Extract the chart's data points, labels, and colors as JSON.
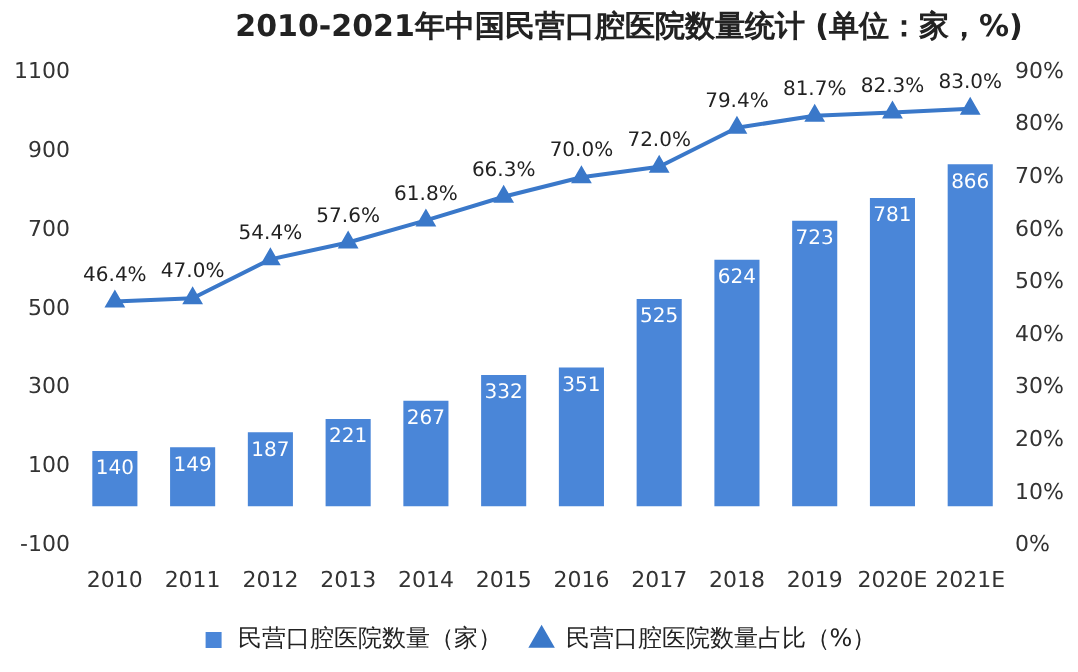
{
  "chart_data": {
    "type": "bar",
    "title": "2010-2021年中国民营口腔医院数量统计 (单位：家，%)",
    "categories": [
      "2010",
      "2011",
      "2012",
      "2013",
      "2014",
      "2015",
      "2016",
      "2017",
      "2018",
      "2019",
      "2020E",
      "2021E"
    ],
    "series": [
      {
        "name": "民营口腔医院数量（家）",
        "color": "#4a86d8",
        "values": [
          140,
          149,
          187,
          221,
          267,
          332,
          351,
          525,
          624,
          723,
          781,
          866
        ],
        "value_labels": [
          "140",
          "149",
          "187",
          "221",
          "267",
          "332",
          "351",
          "525",
          "624",
          "723",
          "781",
          "866"
        ]
      },
      {
        "name": "民营口腔医院数量占比（%）",
        "type": "line",
        "axis": "y2",
        "color": "#3a78c9",
        "values": [
          46.4,
          47.0,
          54.4,
          57.6,
          61.8,
          66.3,
          70.0,
          72.0,
          79.4,
          81.7,
          82.3,
          83.0
        ],
        "value_labels": [
          "46.4%",
          "47.0%",
          "54.4%",
          "57.6%",
          "61.8%",
          "66.3%",
          "70.0%",
          "72.0%",
          "79.4%",
          "81.7%",
          "82.3%",
          "83.0%"
        ]
      }
    ],
    "ylim": [
      -100,
      1100
    ],
    "yticks": [
      -100,
      100,
      300,
      500,
      700,
      900,
      1100
    ],
    "y2lim": [
      0,
      90
    ],
    "y2ticks": [
      {
        "value": 0,
        "label": "0%"
      },
      {
        "value": 10,
        "label": "10%"
      },
      {
        "value": 20,
        "label": "20%"
      },
      {
        "value": 30,
        "label": "30%"
      },
      {
        "value": 40,
        "label": "40%"
      },
      {
        "value": 50,
        "label": "50%"
      },
      {
        "value": 60,
        "label": "60%"
      },
      {
        "value": 70,
        "label": "70%"
      },
      {
        "value": 80,
        "label": "80%"
      },
      {
        "value": 90,
        "label": "90%"
      }
    ],
    "grid": false,
    "legend": "bottom",
    "marker": "triangle",
    "line_style": "solid"
  }
}
